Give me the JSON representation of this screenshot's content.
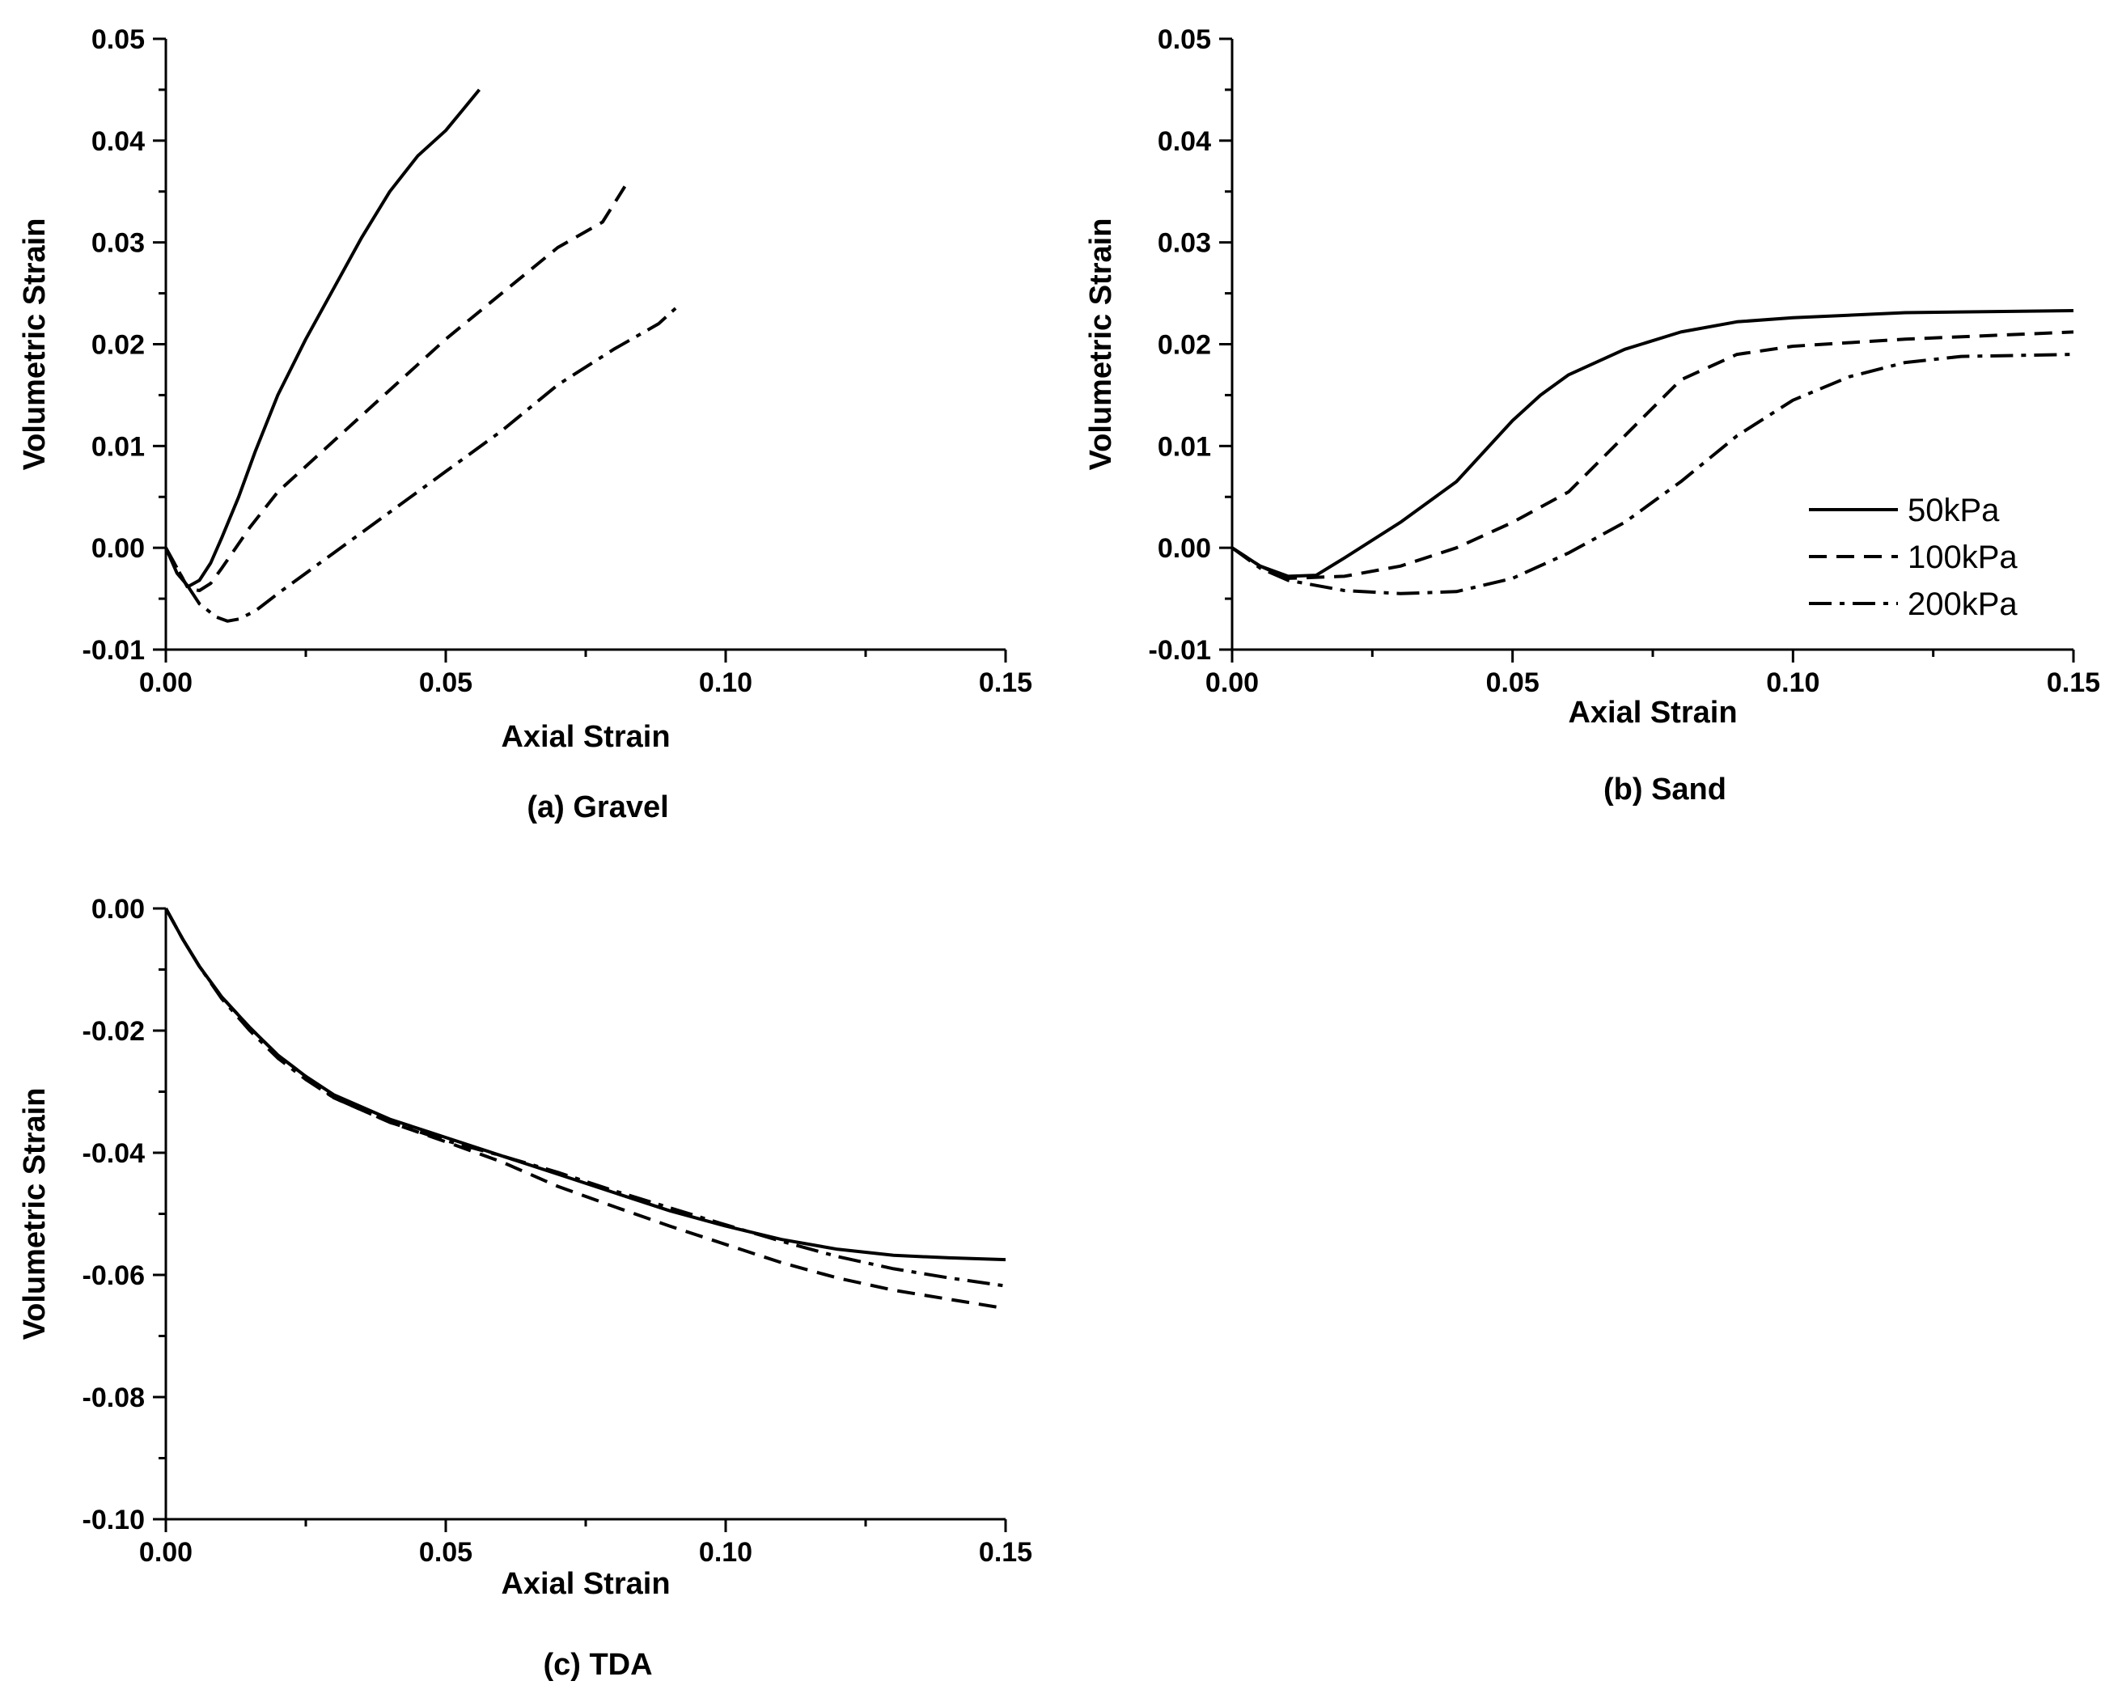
{
  "chart_data": [
    {
      "id": "gravel",
      "type": "line",
      "caption": "(a) Gravel",
      "xlabel": "Axial Strain",
      "ylabel": "Volumetric Strain",
      "xlim": [
        0,
        0.15
      ],
      "ylim": [
        -0.01,
        0.05
      ],
      "xticks": [
        "0.00",
        "0.05",
        "0.10",
        "0.15"
      ],
      "yticks": [
        "-0.01",
        "0.00",
        "0.01",
        "0.02",
        "0.03",
        "0.04",
        "0.05"
      ],
      "series": [
        {
          "name": "50kPa",
          "style": "solid",
          "points": [
            [
              0,
              0
            ],
            [
              0.002,
              -0.0025
            ],
            [
              0.004,
              -0.0038
            ],
            [
              0.006,
              -0.0032
            ],
            [
              0.008,
              -0.0015
            ],
            [
              0.01,
              0.001
            ],
            [
              0.013,
              0.005
            ],
            [
              0.016,
              0.0095
            ],
            [
              0.02,
              0.015
            ],
            [
              0.025,
              0.0205
            ],
            [
              0.03,
              0.0255
            ],
            [
              0.035,
              0.0305
            ],
            [
              0.04,
              0.035
            ],
            [
              0.045,
              0.0385
            ],
            [
              0.05,
              0.041
            ],
            [
              0.053,
              0.043
            ],
            [
              0.056,
              0.045
            ]
          ]
        },
        {
          "name": "100kPa",
          "style": "dash",
          "points": [
            [
              0,
              0
            ],
            [
              0.002,
              -0.002
            ],
            [
              0.004,
              -0.004
            ],
            [
              0.006,
              -0.0042
            ],
            [
              0.008,
              -0.0035
            ],
            [
              0.01,
              -0.002
            ],
            [
              0.015,
              0.002
            ],
            [
              0.02,
              0.0055
            ],
            [
              0.03,
              0.0105
            ],
            [
              0.04,
              0.0155
            ],
            [
              0.05,
              0.0205
            ],
            [
              0.06,
              0.025
            ],
            [
              0.07,
              0.0295
            ],
            [
              0.078,
              0.032
            ],
            [
              0.082,
              0.0355
            ]
          ]
        },
        {
          "name": "200kPa",
          "style": "dashdot",
          "points": [
            [
              0,
              0
            ],
            [
              0.003,
              -0.003
            ],
            [
              0.006,
              -0.0055
            ],
            [
              0.009,
              -0.0068
            ],
            [
              0.011,
              -0.0072
            ],
            [
              0.013,
              -0.007
            ],
            [
              0.016,
              -0.0062
            ],
            [
              0.02,
              -0.0045
            ],
            [
              0.03,
              -0.0005
            ],
            [
              0.04,
              0.0035
            ],
            [
              0.05,
              0.0075
            ],
            [
              0.06,
              0.0115
            ],
            [
              0.07,
              0.016
            ],
            [
              0.08,
              0.0195
            ],
            [
              0.088,
              0.022
            ],
            [
              0.092,
              0.024
            ]
          ]
        }
      ]
    },
    {
      "id": "sand",
      "type": "line",
      "caption": "(b) Sand",
      "xlabel": "Axial Strain",
      "ylabel": "Volumetric Strain",
      "xlim": [
        0,
        0.15
      ],
      "ylim": [
        -0.01,
        0.05
      ],
      "xticks": [
        "0.00",
        "0.05",
        "0.10",
        "0.15"
      ],
      "yticks": [
        "-0.01",
        "0.00",
        "0.01",
        "0.02",
        "0.03",
        "0.04",
        "0.05"
      ],
      "legend": {
        "position": "center-right",
        "entries": [
          "50kPa",
          "100kPa",
          "200kPa"
        ]
      },
      "series": [
        {
          "name": "50kPa",
          "style": "solid",
          "points": [
            [
              0,
              0
            ],
            [
              0.005,
              -0.0018
            ],
            [
              0.01,
              -0.0028
            ],
            [
              0.015,
              -0.0027
            ],
            [
              0.02,
              -0.001
            ],
            [
              0.03,
              0.0025
            ],
            [
              0.04,
              0.0065
            ],
            [
              0.045,
              0.0095
            ],
            [
              0.05,
              0.0125
            ],
            [
              0.055,
              0.015
            ],
            [
              0.06,
              0.017
            ],
            [
              0.07,
              0.0195
            ],
            [
              0.08,
              0.0212
            ],
            [
              0.09,
              0.0222
            ],
            [
              0.1,
              0.0226
            ],
            [
              0.12,
              0.0231
            ],
            [
              0.15,
              0.0233
            ]
          ]
        },
        {
          "name": "100kPa",
          "style": "dash",
          "points": [
            [
              0,
              0
            ],
            [
              0.005,
              -0.0018
            ],
            [
              0.01,
              -0.003
            ],
            [
              0.02,
              -0.0028
            ],
            [
              0.03,
              -0.0018
            ],
            [
              0.04,
              0
            ],
            [
              0.05,
              0.0025
            ],
            [
              0.06,
              0.0055
            ],
            [
              0.07,
              0.011
            ],
            [
              0.08,
              0.0165
            ],
            [
              0.09,
              0.019
            ],
            [
              0.1,
              0.0198
            ],
            [
              0.12,
              0.0205
            ],
            [
              0.15,
              0.0212
            ]
          ]
        },
        {
          "name": "200kPa",
          "style": "dashdot",
          "points": [
            [
              0,
              0
            ],
            [
              0.005,
              -0.002
            ],
            [
              0.01,
              -0.0032
            ],
            [
              0.02,
              -0.0042
            ],
            [
              0.03,
              -0.0045
            ],
            [
              0.04,
              -0.0043
            ],
            [
              0.05,
              -0.003
            ],
            [
              0.06,
              -0.0005
            ],
            [
              0.07,
              0.0025
            ],
            [
              0.08,
              0.0065
            ],
            [
              0.09,
              0.011
            ],
            [
              0.1,
              0.0145
            ],
            [
              0.11,
              0.0168
            ],
            [
              0.12,
              0.0182
            ],
            [
              0.13,
              0.0188
            ],
            [
              0.15,
              0.019
            ]
          ]
        }
      ]
    },
    {
      "id": "tda",
      "type": "line",
      "caption": "(c) TDA",
      "xlabel": "Axial Strain",
      "ylabel": "Volumetric Strain",
      "xlim": [
        0,
        0.15
      ],
      "ylim": [
        -0.1,
        0.0
      ],
      "xticks": [
        "0.00",
        "0.05",
        "0.10",
        "0.15"
      ],
      "yticks": [
        "-0.10",
        "-0.08",
        "-0.06",
        "-0.04",
        "-0.02",
        "0.00"
      ],
      "series": [
        {
          "name": "50kPa",
          "style": "solid",
          "points": [
            [
              0,
              0
            ],
            [
              0.003,
              -0.005
            ],
            [
              0.006,
              -0.0095
            ],
            [
              0.01,
              -0.0145
            ],
            [
              0.015,
              -0.0195
            ],
            [
              0.02,
              -0.024
            ],
            [
              0.025,
              -0.0275
            ],
            [
              0.03,
              -0.0305
            ],
            [
              0.04,
              -0.0345
            ],
            [
              0.05,
              -0.0375
            ],
            [
              0.06,
              -0.0405
            ],
            [
              0.07,
              -0.0435
            ],
            [
              0.08,
              -0.0465
            ],
            [
              0.09,
              -0.0495
            ],
            [
              0.1,
              -0.052
            ],
            [
              0.11,
              -0.0542
            ],
            [
              0.12,
              -0.0558
            ],
            [
              0.13,
              -0.0568
            ],
            [
              0.14,
              -0.0572
            ],
            [
              0.15,
              -0.0575
            ]
          ]
        },
        {
          "name": "100kPa",
          "style": "dash",
          "points": [
            [
              0,
              0
            ],
            [
              0.003,
              -0.005
            ],
            [
              0.006,
              -0.0095
            ],
            [
              0.01,
              -0.0145
            ],
            [
              0.015,
              -0.0195
            ],
            [
              0.02,
              -0.024
            ],
            [
              0.025,
              -0.0275
            ],
            [
              0.03,
              -0.031
            ],
            [
              0.04,
              -0.035
            ],
            [
              0.05,
              -0.0382
            ],
            [
              0.06,
              -0.0415
            ],
            [
              0.07,
              -0.0455
            ],
            [
              0.08,
              -0.0488
            ],
            [
              0.09,
              -0.052
            ],
            [
              0.1,
              -0.055
            ],
            [
              0.11,
              -0.058
            ],
            [
              0.12,
              -0.0605
            ],
            [
              0.13,
              -0.0625
            ],
            [
              0.14,
              -0.064
            ],
            [
              0.15,
              -0.0655
            ]
          ]
        },
        {
          "name": "200kPa",
          "style": "dashdot",
          "points": [
            [
              0,
              0
            ],
            [
              0.003,
              -0.005
            ],
            [
              0.006,
              -0.0095
            ],
            [
              0.01,
              -0.0148
            ],
            [
              0.015,
              -0.02
            ],
            [
              0.02,
              -0.0245
            ],
            [
              0.025,
              -0.028
            ],
            [
              0.03,
              -0.031
            ],
            [
              0.04,
              -0.035
            ],
            [
              0.05,
              -0.038
            ],
            [
              0.06,
              -0.0405
            ],
            [
              0.07,
              -0.0432
            ],
            [
              0.08,
              -0.0462
            ],
            [
              0.09,
              -0.049
            ],
            [
              0.1,
              -0.0518
            ],
            [
              0.11,
              -0.0545
            ],
            [
              0.12,
              -0.057
            ],
            [
              0.13,
              -0.059
            ],
            [
              0.14,
              -0.0605
            ],
            [
              0.15,
              -0.0618
            ]
          ]
        }
      ]
    }
  ]
}
